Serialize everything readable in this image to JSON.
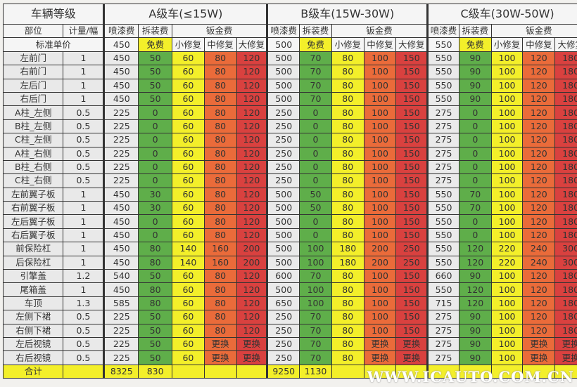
{
  "header": {
    "vehicle_grade": "车辆等级",
    "part": "部位",
    "qty": "计量/幅",
    "standard_price": "标准单价",
    "classes": [
      {
        "title": "A级车(≤15W)",
        "paint": "喷漆费",
        "disassembly": "拆装费",
        "sheet_metal": "钣金费",
        "small": "小修复",
        "medium": "中修复",
        "large": "大修复",
        "std_paint": "450",
        "std_dis": "免费"
      },
      {
        "title": "B级车(15W-30W)",
        "paint": "喷漆费",
        "disassembly": "拆装费",
        "sheet_metal": "钣金费",
        "small": "小修复",
        "medium": "中修复",
        "large": "大修复",
        "std_paint": "500",
        "std_dis": "免费"
      },
      {
        "title": "C级车(30W-50W)",
        "paint": "喷漆费",
        "disassembly": "拆装费",
        "sheet_metal": "钣金费",
        "small": "小修复",
        "medium": "中修复",
        "large": "大修复",
        "std_paint": "550",
        "std_dis": "免费"
      }
    ]
  },
  "colors": {
    "green": "#5fae4a",
    "yellow": "#f3ef2a",
    "orange": "#ea6b3a",
    "red": "#d9413f",
    "gray": "#eaeaea"
  },
  "rows": [
    {
      "part": "左前门",
      "qty": "1",
      "a": [
        "450",
        "50",
        "60",
        "80",
        "120"
      ],
      "b": [
        "500",
        "70",
        "80",
        "100",
        "150"
      ],
      "c": [
        "550",
        "90",
        "100",
        "120",
        "180"
      ]
    },
    {
      "part": "右前门",
      "qty": "1",
      "a": [
        "450",
        "50",
        "60",
        "80",
        "120"
      ],
      "b": [
        "500",
        "70",
        "80",
        "100",
        "150"
      ],
      "c": [
        "550",
        "90",
        "100",
        "120",
        "180"
      ]
    },
    {
      "part": "左后门",
      "qty": "1",
      "a": [
        "450",
        "50",
        "60",
        "80",
        "120"
      ],
      "b": [
        "500",
        "70",
        "80",
        "100",
        "150"
      ],
      "c": [
        "550",
        "90",
        "100",
        "120",
        "180"
      ]
    },
    {
      "part": "右后门",
      "qty": "1",
      "a": [
        "450",
        "50",
        "60",
        "80",
        "120"
      ],
      "b": [
        "500",
        "70",
        "80",
        "100",
        "150"
      ],
      "c": [
        "550",
        "90",
        "100",
        "120",
        "180"
      ]
    },
    {
      "part": "A柱_左侧",
      "qty": "0.5",
      "a": [
        "225",
        "0",
        "60",
        "80",
        "120"
      ],
      "b": [
        "250",
        "0",
        "80",
        "100",
        "150"
      ],
      "c": [
        "275",
        "0",
        "100",
        "120",
        "180"
      ]
    },
    {
      "part": "B柱_左侧",
      "qty": "0.5",
      "a": [
        "225",
        "0",
        "60",
        "80",
        "120"
      ],
      "b": [
        "250",
        "0",
        "80",
        "100",
        "150"
      ],
      "c": [
        "275",
        "0",
        "100",
        "120",
        "180"
      ]
    },
    {
      "part": "C柱_左侧",
      "qty": "0.5",
      "a": [
        "225",
        "0",
        "60",
        "80",
        "120"
      ],
      "b": [
        "250",
        "0",
        "80",
        "100",
        "150"
      ],
      "c": [
        "275",
        "0",
        "100",
        "120",
        "180"
      ]
    },
    {
      "part": "A柱_右侧",
      "qty": "0.5",
      "a": [
        "225",
        "0",
        "60",
        "80",
        "120"
      ],
      "b": [
        "250",
        "0",
        "80",
        "100",
        "150"
      ],
      "c": [
        "275",
        "0",
        "100",
        "120",
        "180"
      ]
    },
    {
      "part": "B柱_右侧",
      "qty": "0.5",
      "a": [
        "225",
        "0",
        "60",
        "80",
        "120"
      ],
      "b": [
        "250",
        "0",
        "80",
        "100",
        "150"
      ],
      "c": [
        "275",
        "0",
        "100",
        "120",
        "180"
      ]
    },
    {
      "part": "C柱_右侧",
      "qty": "0.5",
      "a": [
        "225",
        "0",
        "60",
        "80",
        "120"
      ],
      "b": [
        "250",
        "0",
        "80",
        "100",
        "150"
      ],
      "c": [
        "275",
        "0",
        "100",
        "120",
        "180"
      ]
    },
    {
      "part": "左前翼子板",
      "qty": "1",
      "a": [
        "450",
        "30",
        "60",
        "80",
        "120"
      ],
      "b": [
        "500",
        "50",
        "80",
        "100",
        "150"
      ],
      "c": [
        "550",
        "70",
        "100",
        "120",
        "180"
      ]
    },
    {
      "part": "右前翼子板",
      "qty": "1",
      "a": [
        "450",
        "30",
        "60",
        "80",
        "120"
      ],
      "b": [
        "500",
        "50",
        "80",
        "100",
        "150"
      ],
      "c": [
        "550",
        "70",
        "100",
        "120",
        "180"
      ]
    },
    {
      "part": "左后翼子板",
      "qty": "1",
      "a": [
        "450",
        "0",
        "60",
        "80",
        "120"
      ],
      "b": [
        "500",
        "0",
        "80",
        "100",
        "150"
      ],
      "c": [
        "550",
        "0",
        "100",
        "120",
        "180"
      ]
    },
    {
      "part": "右后翼子板",
      "qty": "1",
      "a": [
        "450",
        "0",
        "60",
        "80",
        "120"
      ],
      "b": [
        "500",
        "0",
        "80",
        "100",
        "150"
      ],
      "c": [
        "550",
        "0",
        "100",
        "120",
        "180"
      ]
    },
    {
      "part": "前保险杠",
      "qty": "1",
      "a": [
        "450",
        "80",
        "140",
        "160",
        "200"
      ],
      "b": [
        "500",
        "100",
        "180",
        "200",
        "250"
      ],
      "c": [
        "550",
        "120",
        "220",
        "240",
        "300"
      ]
    },
    {
      "part": "后保险杠",
      "qty": "1",
      "a": [
        "450",
        "80",
        "140",
        "160",
        "200"
      ],
      "b": [
        "500",
        "100",
        "180",
        "200",
        "250"
      ],
      "c": [
        "550",
        "120",
        "220",
        "240",
        "300"
      ]
    },
    {
      "part": "引擎盖",
      "qty": "1.2",
      "a": [
        "540",
        "50",
        "60",
        "80",
        "120"
      ],
      "b": [
        "600",
        "70",
        "80",
        "100",
        "150"
      ],
      "c": [
        "660",
        "90",
        "100",
        "120",
        "180"
      ]
    },
    {
      "part": "尾箱盖",
      "qty": "1",
      "a": [
        "450",
        "80",
        "60",
        "80",
        "120"
      ],
      "b": [
        "500",
        "100",
        "80",
        "100",
        "150"
      ],
      "c": [
        "550",
        "120",
        "100",
        "120",
        "180"
      ]
    },
    {
      "part": "车顶",
      "qty": "1.3",
      "a": [
        "585",
        "80",
        "60",
        "80",
        "120"
      ],
      "b": [
        "650",
        "100",
        "80",
        "100",
        "150"
      ],
      "c": [
        "715",
        "120",
        "100",
        "120",
        "180"
      ]
    },
    {
      "part": "左侧下裙",
      "qty": "0.5",
      "a": [
        "225",
        "50",
        "60",
        "80",
        "120"
      ],
      "b": [
        "250",
        "70",
        "80",
        "100",
        "150"
      ],
      "c": [
        "275",
        "90",
        "100",
        "120",
        "180"
      ]
    },
    {
      "part": "右侧下裙",
      "qty": "0.5",
      "a": [
        "225",
        "50",
        "60",
        "80",
        "120"
      ],
      "b": [
        "250",
        "70",
        "80",
        "100",
        "150"
      ],
      "c": [
        "275",
        "90",
        "100",
        "120",
        "180"
      ]
    },
    {
      "part": "左后视镜",
      "qty": "0.5",
      "a": [
        "225",
        "50",
        "60",
        "更换",
        "更换"
      ],
      "b": [
        "250",
        "70",
        "80",
        "更换",
        "更换"
      ],
      "c": [
        "275",
        "90",
        "100",
        "更换",
        "更换"
      ]
    },
    {
      "part": "右后视镜",
      "qty": "0.5",
      "a": [
        "225",
        "50",
        "60",
        "更换",
        "更换"
      ],
      "b": [
        "250",
        "70",
        "80",
        "更换",
        "更换"
      ],
      "c": [
        "275",
        "90",
        "100",
        "更换",
        "更换"
      ]
    }
  ],
  "total": {
    "label": "合计",
    "a": [
      "8325",
      "830"
    ],
    "b": [
      "9250",
      "1130"
    ]
  },
  "watermark": "WWW.ICAUTO.COM.CN"
}
